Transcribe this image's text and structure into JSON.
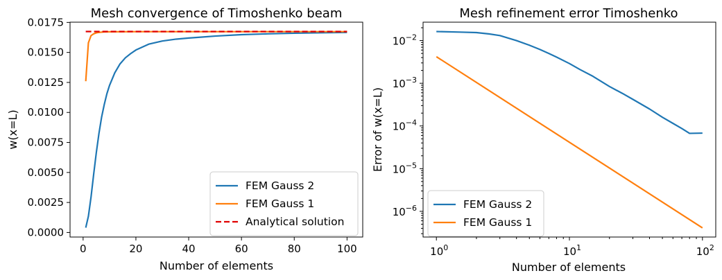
{
  "chart_data": [
    {
      "type": "line",
      "title": "Mesh convergence of Timoshenko beam",
      "xlabel": "Number of elements",
      "ylabel": "w(x=L)",
      "xscale": "linear",
      "yscale": "linear",
      "xlim": [
        -4.95,
        105.95
      ],
      "ylim": [
        -0.00038,
        0.01752
      ],
      "xticks": [
        0,
        20,
        40,
        60,
        80,
        100
      ],
      "xtick_labels": [
        "0",
        "20",
        "40",
        "60",
        "80",
        "100"
      ],
      "yticks": [
        0,
        0.0025,
        0.005,
        0.0075,
        0.01,
        0.0125,
        0.015,
        0.0175
      ],
      "ytick_labels": [
        "0.0000",
        "0.0025",
        "0.0050",
        "0.0075",
        "0.0100",
        "0.0125",
        "0.0150",
        "0.0175"
      ],
      "legend_position": "lower-right",
      "series": [
        {
          "name": "FEM Gauss 2",
          "color": "#1f77b4",
          "style": "solid",
          "x": [
            1,
            2,
            3,
            4,
            5,
            6,
            7,
            8,
            9,
            10,
            12,
            14,
            16,
            18,
            20,
            25,
            30,
            35,
            40,
            45,
            50,
            60,
            70,
            80,
            90,
            100
          ],
          "y": [
            0.0004,
            0.00135,
            0.00295,
            0.00485,
            0.00665,
            0.00825,
            0.0096,
            0.01065,
            0.01155,
            0.01225,
            0.0133,
            0.01405,
            0.01455,
            0.0149,
            0.0152,
            0.0157,
            0.01595,
            0.0161,
            0.0162,
            0.01628,
            0.01636,
            0.01648,
            0.01655,
            0.0166,
            0.01664,
            0.01667
          ]
        },
        {
          "name": "FEM Gauss 1",
          "color": "#ff7f0e",
          "style": "solid",
          "x": [
            1,
            2,
            3,
            4,
            5,
            6,
            8,
            10,
            20,
            50,
            100
          ],
          "y": [
            0.0126,
            0.0158,
            0.0164,
            0.01655,
            0.01663,
            0.01667,
            0.01671,
            0.01672,
            0.01673,
            0.01673,
            0.01673
          ]
        },
        {
          "name": "Analytical solution",
          "color": "#e00000",
          "style": "dashed",
          "x": [
            1,
            100
          ],
          "y": [
            0.01674,
            0.01674
          ]
        }
      ]
    },
    {
      "type": "line",
      "title": "Mesh refinement error Timoshenko",
      "xlabel": "Number of elements",
      "ylabel": "Error of w(x=L)",
      "xscale": "log",
      "yscale": "log",
      "xlim": [
        0.794,
        125.9
      ],
      "ylim": [
        2.5e-07,
        0.027
      ],
      "xticks": [
        1,
        10,
        100
      ],
      "xtick_labels": [
        {
          "base": "10",
          "exp": "0"
        },
        {
          "base": "10",
          "exp": "1"
        },
        {
          "base": "10",
          "exp": "2"
        }
      ],
      "yticks": [
        1e-06,
        1e-05,
        0.0001,
        0.001,
        0.01
      ],
      "ytick_labels": [
        {
          "base": "10",
          "exp": "−6"
        },
        {
          "base": "10",
          "exp": "−5"
        },
        {
          "base": "10",
          "exp": "−4"
        },
        {
          "base": "10",
          "exp": "−3"
        },
        {
          "base": "10",
          "exp": "−2"
        }
      ],
      "legend_position": "lower-left",
      "series": [
        {
          "name": "FEM Gauss 2",
          "color": "#1f77b4",
          "style": "solid",
          "x": [
            1,
            1.5,
            2,
            2.5,
            3,
            4,
            5,
            6,
            7,
            8,
            10,
            12,
            15,
            20,
            25,
            30,
            40,
            50,
            60,
            70,
            80,
            100
          ],
          "y": [
            0.0163,
            0.0158,
            0.0154,
            0.0143,
            0.0131,
            0.01,
            0.0078,
            0.0062,
            0.005,
            0.0041,
            0.0029,
            0.0021,
            0.00146,
            0.00084,
            0.00058,
            0.00042,
            0.00025,
            0.00016,
            0.000115,
            8.7e-05,
            6.7e-05,
            6.8e-05
          ]
        },
        {
          "name": "FEM Gauss 1",
          "color": "#ff7f0e",
          "style": "solid",
          "x": [
            1,
            100
          ],
          "y": [
            0.0042,
            4.1e-07
          ]
        }
      ]
    }
  ]
}
